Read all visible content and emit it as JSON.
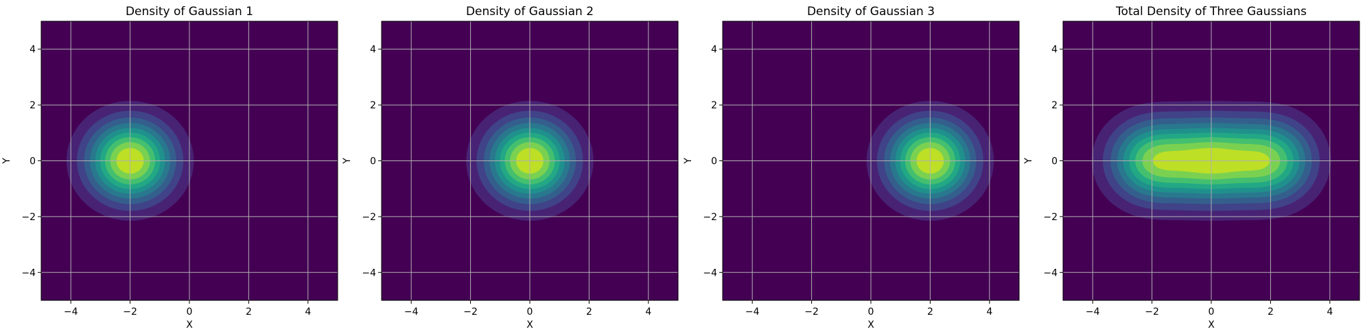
{
  "figure": {
    "palette": [
      "#440154",
      "#482374",
      "#404387",
      "#345f8d",
      "#29788e",
      "#20908d",
      "#22a884",
      "#44bf70",
      "#7ad151",
      "#bddf26",
      "#fde725"
    ],
    "grid_color": "#b0b0b0",
    "contour_levels": 10
  },
  "chart_data": [
    {
      "type": "heatmap",
      "title": "Density of Gaussian 1",
      "xlabel": "X",
      "ylabel": "Y",
      "xlim": [
        -5,
        5
      ],
      "ylim": [
        -5,
        5
      ],
      "xticks": [
        -4,
        -2,
        0,
        2,
        4
      ],
      "yticks": [
        -4,
        -2,
        0,
        2,
        4
      ],
      "xtick_labels": [
        "−4",
        "−2",
        "0",
        "2",
        "4"
      ],
      "ytick_labels": [
        "−4",
        "−2",
        "0",
        "2",
        "4"
      ],
      "grid": true,
      "gaussians": [
        {
          "mean": [
            -2,
            0
          ],
          "sigma": 1.0
        }
      ]
    },
    {
      "type": "heatmap",
      "title": "Density of Gaussian 2",
      "xlabel": "X",
      "ylabel": "Y",
      "xlim": [
        -5,
        5
      ],
      "ylim": [
        -5,
        5
      ],
      "xticks": [
        -4,
        -2,
        0,
        2,
        4
      ],
      "yticks": [
        -4,
        -2,
        0,
        2,
        4
      ],
      "xtick_labels": [
        "−4",
        "−2",
        "0",
        "2",
        "4"
      ],
      "ytick_labels": [
        "−4",
        "−2",
        "0",
        "2",
        "4"
      ],
      "grid": true,
      "gaussians": [
        {
          "mean": [
            0,
            0
          ],
          "sigma": 1.0
        }
      ]
    },
    {
      "type": "heatmap",
      "title": "Density of Gaussian 3",
      "xlabel": "X",
      "ylabel": "Y",
      "xlim": [
        -5,
        5
      ],
      "ylim": [
        -5,
        5
      ],
      "xticks": [
        -4,
        -2,
        0,
        2,
        4
      ],
      "yticks": [
        -4,
        -2,
        0,
        2,
        4
      ],
      "xtick_labels": [
        "−4",
        "−2",
        "0",
        "2",
        "4"
      ],
      "ytick_labels": [
        "−4",
        "−2",
        "0",
        "2",
        "4"
      ],
      "grid": true,
      "gaussians": [
        {
          "mean": [
            2,
            0
          ],
          "sigma": 1.0
        }
      ]
    },
    {
      "type": "heatmap",
      "title": "Total Density of Three Gaussians",
      "xlabel": "X",
      "ylabel": "Y",
      "xlim": [
        -5,
        5
      ],
      "ylim": [
        -5,
        5
      ],
      "xticks": [
        -4,
        -2,
        0,
        2,
        4
      ],
      "yticks": [
        -4,
        -2,
        0,
        2,
        4
      ],
      "xtick_labels": [
        "−4",
        "−2",
        "0",
        "2",
        "4"
      ],
      "ytick_labels": [
        "−4",
        "−2",
        "0",
        "2",
        "4"
      ],
      "grid": true,
      "gaussians": [
        {
          "mean": [
            -2,
            0
          ],
          "sigma": 1.0
        },
        {
          "mean": [
            0,
            0
          ],
          "sigma": 1.0
        },
        {
          "mean": [
            2,
            0
          ],
          "sigma": 1.0
        }
      ]
    }
  ]
}
